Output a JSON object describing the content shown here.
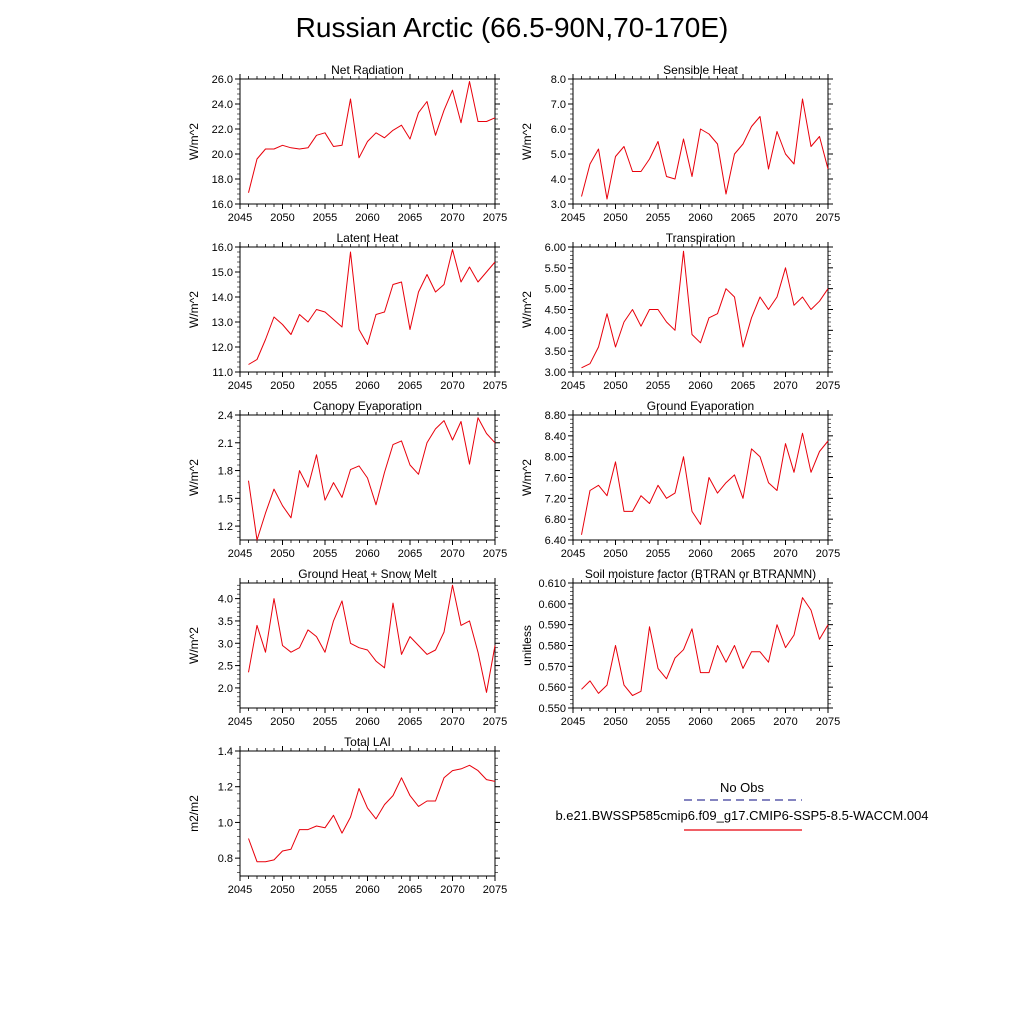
{
  "title": "Russian Arctic (66.5-90N,70-170E)",
  "colors": {
    "model_line": "#e8000b",
    "obs_line": "#3a3a9a",
    "axis": "#000000"
  },
  "legend": {
    "obs_label": "No Obs",
    "model_label": "b.e21.BWSSP585cmip6.f09_g17.CMIP6-SSP5-8.5-WACCM.004"
  },
  "chart_data": [
    {
      "type": "line",
      "title": "Net Radiation",
      "ylabel": "W/m^2",
      "xlim": [
        2045,
        2075
      ],
      "ylim": [
        16.0,
        26.0
      ],
      "xticks": [
        2045,
        2050,
        2055,
        2060,
        2065,
        2070,
        2075
      ],
      "yticks": [
        16.0,
        18.0,
        20.0,
        22.0,
        24.0,
        26.0
      ],
      "ytick_labels": [
        "16.0",
        "18.0",
        "20.0",
        "22.0",
        "24.0",
        "26.0"
      ],
      "x": [
        2046,
        2047,
        2048,
        2049,
        2050,
        2051,
        2052,
        2053,
        2054,
        2055,
        2056,
        2057,
        2058,
        2059,
        2060,
        2061,
        2062,
        2063,
        2064,
        2065,
        2066,
        2067,
        2068,
        2069,
        2070,
        2071,
        2072,
        2073,
        2074,
        2075
      ],
      "series": [
        {
          "name": "b.e21.BWSSP585cmip6.f09_g17.CMIP6-SSP5-8.5-WACCM.004",
          "values": [
            16.9,
            19.6,
            20.4,
            20.4,
            20.7,
            20.5,
            20.4,
            20.5,
            21.5,
            21.7,
            20.6,
            20.7,
            24.4,
            19.7,
            21.0,
            21.7,
            21.3,
            21.9,
            22.3,
            21.2,
            23.3,
            24.2,
            21.5,
            23.5,
            25.1,
            22.5,
            25.8,
            22.6,
            22.6,
            22.9
          ]
        }
      ]
    },
    {
      "type": "line",
      "title": "Sensible Heat",
      "ylabel": "W/m^2",
      "xlim": [
        2045,
        2075
      ],
      "ylim": [
        3.0,
        8.0
      ],
      "xticks": [
        2045,
        2050,
        2055,
        2060,
        2065,
        2070,
        2075
      ],
      "yticks": [
        3.0,
        4.0,
        5.0,
        6.0,
        7.0,
        8.0
      ],
      "ytick_labels": [
        "3.0",
        "4.0",
        "5.0",
        "6.0",
        "7.0",
        "8.0"
      ],
      "x": [
        2046,
        2047,
        2048,
        2049,
        2050,
        2051,
        2052,
        2053,
        2054,
        2055,
        2056,
        2057,
        2058,
        2059,
        2060,
        2061,
        2062,
        2063,
        2064,
        2065,
        2066,
        2067,
        2068,
        2069,
        2070,
        2071,
        2072,
        2073,
        2074,
        2075
      ],
      "series": [
        {
          "name": "b.e21.BWSSP585cmip6.f09_g17.CMIP6-SSP5-8.5-WACCM.004",
          "values": [
            3.3,
            4.6,
            5.2,
            3.2,
            4.9,
            5.3,
            4.3,
            4.3,
            4.8,
            5.5,
            4.1,
            4.0,
            5.6,
            4.1,
            6.0,
            5.8,
            5.4,
            3.4,
            5.0,
            5.4,
            6.1,
            6.5,
            4.4,
            5.9,
            5.0,
            4.6,
            7.2,
            5.3,
            5.7,
            4.4
          ]
        }
      ]
    },
    {
      "type": "line",
      "title": "Latent Heat",
      "ylabel": "W/m^2",
      "xlim": [
        2045,
        2075
      ],
      "ylim": [
        11.0,
        16.0
      ],
      "xticks": [
        2045,
        2050,
        2055,
        2060,
        2065,
        2070,
        2075
      ],
      "yticks": [
        11.0,
        12.0,
        13.0,
        14.0,
        15.0,
        16.0
      ],
      "ytick_labels": [
        "11.0",
        "12.0",
        "13.0",
        "14.0",
        "15.0",
        "16.0"
      ],
      "x": [
        2046,
        2047,
        2048,
        2049,
        2050,
        2051,
        2052,
        2053,
        2054,
        2055,
        2056,
        2057,
        2058,
        2059,
        2060,
        2061,
        2062,
        2063,
        2064,
        2065,
        2066,
        2067,
        2068,
        2069,
        2070,
        2071,
        2072,
        2073,
        2074,
        2075
      ],
      "series": [
        {
          "name": "b.e21.BWSSP585cmip6.f09_g17.CMIP6-SSP5-8.5-WACCM.004",
          "values": [
            11.3,
            11.5,
            12.3,
            13.2,
            12.9,
            12.5,
            13.3,
            13.0,
            13.5,
            13.4,
            13.1,
            12.8,
            15.8,
            12.7,
            12.1,
            13.3,
            13.4,
            14.5,
            14.6,
            12.7,
            14.2,
            14.9,
            14.2,
            14.5,
            15.9,
            14.6,
            15.2,
            14.6,
            15.0,
            15.4
          ]
        }
      ]
    },
    {
      "type": "line",
      "title": "Transpiration",
      "ylabel": "W/m^2",
      "xlim": [
        2045,
        2075
      ],
      "ylim": [
        3.0,
        6.0
      ],
      "xticks": [
        2045,
        2050,
        2055,
        2060,
        2065,
        2070,
        2075
      ],
      "yticks": [
        3.0,
        3.5,
        4.0,
        4.5,
        5.0,
        5.5,
        6.0
      ],
      "ytick_labels": [
        "3.00",
        "3.50",
        "4.00",
        "4.50",
        "5.00",
        "5.50",
        "6.00"
      ],
      "x": [
        2046,
        2047,
        2048,
        2049,
        2050,
        2051,
        2052,
        2053,
        2054,
        2055,
        2056,
        2057,
        2058,
        2059,
        2060,
        2061,
        2062,
        2063,
        2064,
        2065,
        2066,
        2067,
        2068,
        2069,
        2070,
        2071,
        2072,
        2073,
        2074,
        2075
      ],
      "series": [
        {
          "name": "b.e21.BWSSP585cmip6.f09_g17.CMIP6-SSP5-8.5-WACCM.004",
          "values": [
            3.1,
            3.2,
            3.6,
            4.4,
            3.6,
            4.2,
            4.5,
            4.1,
            4.5,
            4.5,
            4.2,
            4.0,
            5.9,
            3.9,
            3.7,
            4.3,
            4.4,
            5.0,
            4.8,
            3.6,
            4.3,
            4.8,
            4.5,
            4.8,
            5.5,
            4.6,
            4.8,
            4.5,
            4.7,
            5.0
          ]
        }
      ]
    },
    {
      "type": "line",
      "title": "Canopy Evaporation",
      "ylabel": "W/m^2",
      "xlim": [
        2045,
        2075
      ],
      "ylim": [
        1.05,
        2.4
      ],
      "xticks": [
        2045,
        2050,
        2055,
        2060,
        2065,
        2070,
        2075
      ],
      "yticks": [
        1.2,
        1.5,
        1.8,
        2.1,
        2.4
      ],
      "ytick_labels": [
        "1.2",
        "1.5",
        "1.8",
        "2.1",
        "2.4"
      ],
      "x": [
        2046,
        2047,
        2048,
        2049,
        2050,
        2051,
        2052,
        2053,
        2054,
        2055,
        2056,
        2057,
        2058,
        2059,
        2060,
        2061,
        2062,
        2063,
        2064,
        2065,
        2066,
        2067,
        2068,
        2069,
        2070,
        2071,
        2072,
        2073,
        2074,
        2075
      ],
      "series": [
        {
          "name": "b.e21.BWSSP585cmip6.f09_g17.CMIP6-SSP5-8.5-WACCM.004",
          "values": [
            1.69,
            1.05,
            1.34,
            1.6,
            1.42,
            1.29,
            1.8,
            1.62,
            1.97,
            1.48,
            1.67,
            1.51,
            1.81,
            1.85,
            1.72,
            1.43,
            1.78,
            2.08,
            2.12,
            1.86,
            1.76,
            2.1,
            2.25,
            2.34,
            2.13,
            2.33,
            1.87,
            2.37,
            2.2,
            2.1
          ]
        }
      ]
    },
    {
      "type": "line",
      "title": "Ground Evaporation",
      "ylabel": "W/m^2",
      "xlim": [
        2045,
        2075
      ],
      "ylim": [
        6.4,
        8.8
      ],
      "xticks": [
        2045,
        2050,
        2055,
        2060,
        2065,
        2070,
        2075
      ],
      "yticks": [
        6.4,
        6.8,
        7.2,
        7.6,
        8.0,
        8.4,
        8.8
      ],
      "ytick_labels": [
        "6.40",
        "6.80",
        "7.20",
        "7.60",
        "8.00",
        "8.40",
        "8.80"
      ],
      "x": [
        2046,
        2047,
        2048,
        2049,
        2050,
        2051,
        2052,
        2053,
        2054,
        2055,
        2056,
        2057,
        2058,
        2059,
        2060,
        2061,
        2062,
        2063,
        2064,
        2065,
        2066,
        2067,
        2068,
        2069,
        2070,
        2071,
        2072,
        2073,
        2074,
        2075
      ],
      "series": [
        {
          "name": "b.e21.BWSSP585cmip6.f09_g17.CMIP6-SSP5-8.5-WACCM.004",
          "values": [
            6.5,
            7.35,
            7.45,
            7.25,
            7.9,
            6.95,
            6.95,
            7.25,
            7.1,
            7.45,
            7.2,
            7.3,
            8.0,
            6.95,
            6.7,
            7.6,
            7.3,
            7.5,
            7.65,
            7.2,
            8.15,
            8.0,
            7.5,
            7.35,
            8.25,
            7.7,
            8.45,
            7.7,
            8.1,
            8.3
          ]
        }
      ]
    },
    {
      "type": "line",
      "title": "Ground Heat + Snow Melt",
      "ylabel": "W/m^2",
      "xlim": [
        2045,
        2075
      ],
      "ylim": [
        1.55,
        4.35
      ],
      "xticks": [
        2045,
        2050,
        2055,
        2060,
        2065,
        2070,
        2075
      ],
      "yticks": [
        2.0,
        2.5,
        3.0,
        3.5,
        4.0
      ],
      "ytick_labels": [
        "2.0",
        "2.5",
        "3.0",
        "3.5",
        "4.0"
      ],
      "x": [
        2046,
        2047,
        2048,
        2049,
        2050,
        2051,
        2052,
        2053,
        2054,
        2055,
        2056,
        2057,
        2058,
        2059,
        2060,
        2061,
        2062,
        2063,
        2064,
        2065,
        2066,
        2067,
        2068,
        2069,
        2070,
        2071,
        2072,
        2073,
        2074,
        2075
      ],
      "series": [
        {
          "name": "b.e21.BWSSP585cmip6.f09_g17.CMIP6-SSP5-8.5-WACCM.004",
          "values": [
            2.35,
            3.4,
            2.8,
            4.0,
            2.95,
            2.8,
            2.9,
            3.3,
            3.15,
            2.8,
            3.5,
            3.95,
            3.0,
            2.9,
            2.85,
            2.6,
            2.45,
            3.9,
            2.75,
            3.15,
            2.95,
            2.75,
            2.85,
            3.25,
            4.3,
            3.4,
            3.5,
            2.8,
            1.9,
            2.95
          ]
        }
      ]
    },
    {
      "type": "line",
      "title": "Soil moisture factor (BTRAN or BTRANMN)",
      "ylabel": "unitless",
      "xlim": [
        2045,
        2075
      ],
      "ylim": [
        0.55,
        0.61
      ],
      "xticks": [
        2045,
        2050,
        2055,
        2060,
        2065,
        2070,
        2075
      ],
      "yticks": [
        0.55,
        0.56,
        0.57,
        0.58,
        0.59,
        0.6,
        0.61
      ],
      "ytick_labels": [
        "0.550",
        "0.560",
        "0.570",
        "0.580",
        "0.590",
        "0.600",
        "0.610"
      ],
      "x": [
        2046,
        2047,
        2048,
        2049,
        2050,
        2051,
        2052,
        2053,
        2054,
        2055,
        2056,
        2057,
        2058,
        2059,
        2060,
        2061,
        2062,
        2063,
        2064,
        2065,
        2066,
        2067,
        2068,
        2069,
        2070,
        2071,
        2072,
        2073,
        2074,
        2075
      ],
      "series": [
        {
          "name": "b.e21.BWSSP585cmip6.f09_g17.CMIP6-SSP5-8.5-WACCM.004",
          "values": [
            0.559,
            0.563,
            0.557,
            0.561,
            0.58,
            0.561,
            0.556,
            0.558,
            0.589,
            0.569,
            0.564,
            0.574,
            0.578,
            0.588,
            0.567,
            0.567,
            0.58,
            0.572,
            0.58,
            0.569,
            0.577,
            0.577,
            0.572,
            0.59,
            0.579,
            0.585,
            0.603,
            0.597,
            0.583,
            0.59
          ]
        }
      ]
    },
    {
      "type": "line",
      "title": "Total LAI",
      "ylabel": "m2/m2",
      "xlim": [
        2045,
        2075
      ],
      "ylim": [
        0.7,
        1.4
      ],
      "xticks": [
        2045,
        2050,
        2055,
        2060,
        2065,
        2070,
        2075
      ],
      "yticks": [
        0.8,
        1.0,
        1.2,
        1.4
      ],
      "ytick_labels": [
        "0.8",
        "1.0",
        "1.2",
        "1.4"
      ],
      "x": [
        2046,
        2047,
        2048,
        2049,
        2050,
        2051,
        2052,
        2053,
        2054,
        2055,
        2056,
        2057,
        2058,
        2059,
        2060,
        2061,
        2062,
        2063,
        2064,
        2065,
        2066,
        2067,
        2068,
        2069,
        2070,
        2071,
        2072,
        2073,
        2074,
        2075
      ],
      "series": [
        {
          "name": "b.e21.BWSSP585cmip6.f09_g17.CMIP6-SSP5-8.5-WACCM.004",
          "values": [
            0.91,
            0.78,
            0.78,
            0.79,
            0.84,
            0.85,
            0.96,
            0.96,
            0.98,
            0.97,
            1.04,
            0.94,
            1.03,
            1.19,
            1.08,
            1.02,
            1.1,
            1.15,
            1.25,
            1.15,
            1.09,
            1.12,
            1.12,
            1.25,
            1.29,
            1.3,
            1.32,
            1.29,
            1.24,
            1.23
          ]
        }
      ]
    }
  ]
}
